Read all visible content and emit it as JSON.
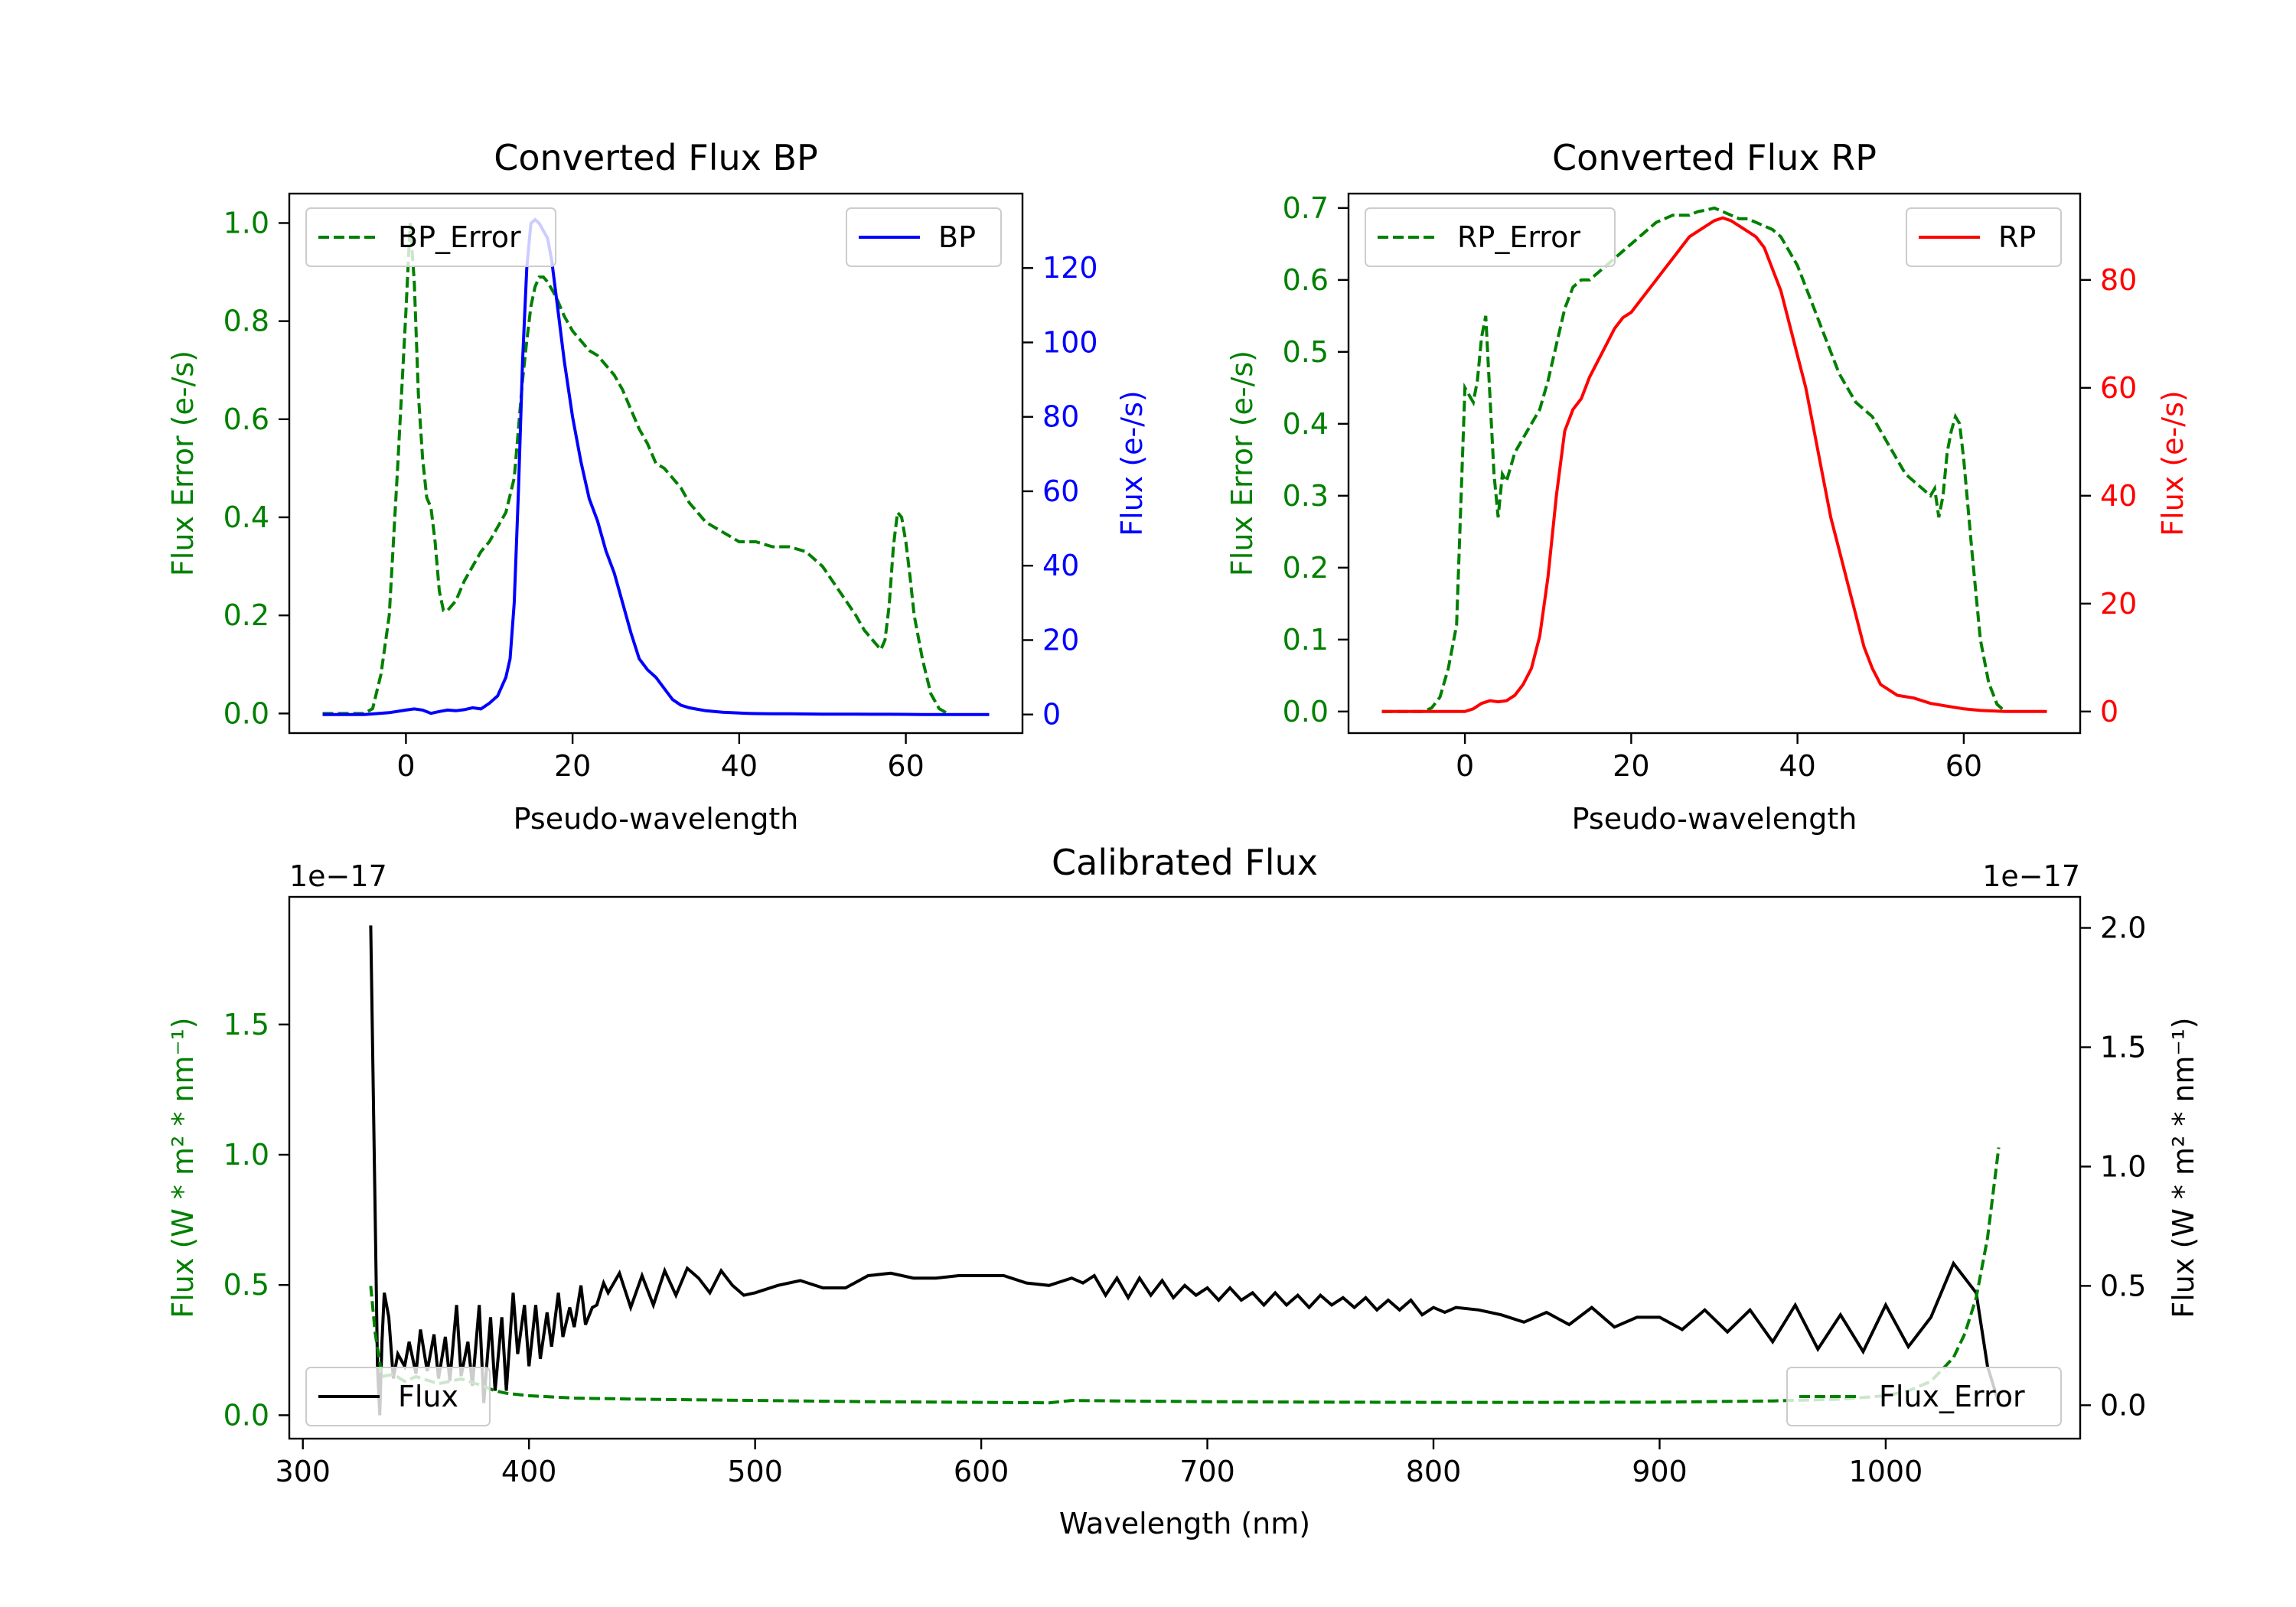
{
  "chart_data": [
    {
      "id": "bp",
      "type": "line",
      "title": "Converted Flux BP",
      "xlabel": "Pseudo-wavelength",
      "ylabel_left": "Flux Error (e-/s)",
      "ylabel_right": "Flux (e-/s)",
      "xlim": [
        -14,
        74
      ],
      "ylim_left": [
        -0.04,
        1.06
      ],
      "ylim_right": [
        -5,
        140
      ],
      "xticks": [
        0,
        20,
        40,
        60
      ],
      "yticks_left": [
        0.0,
        0.2,
        0.4,
        0.6,
        0.8,
        1.0
      ],
      "yticks_right": [
        0,
        20,
        40,
        60,
        80,
        100,
        120
      ],
      "ytick_labels_left": [
        "0.0",
        "0.2",
        "0.4",
        "0.6",
        "0.8",
        "1.0"
      ],
      "ytick_labels_right": [
        "0",
        "20",
        "40",
        "60",
        "80",
        "100",
        "120"
      ],
      "legend_left": "BP_Error",
      "legend_right": "BP",
      "left_color": "#008000",
      "right_color": "#0000ff",
      "error_series": {
        "name": "BP_Error",
        "x": [
          -10,
          -5,
          -4,
          -3,
          -2,
          -1,
          0,
          0.5,
          1,
          1.5,
          2,
          2.5,
          3,
          3.5,
          4,
          4.5,
          5,
          6,
          7,
          8,
          9,
          10,
          11,
          12,
          13,
          13.5,
          14,
          14.5,
          15,
          15.5,
          16,
          16.5,
          17,
          18,
          19,
          20,
          21,
          22,
          23,
          24,
          25,
          26,
          27,
          28,
          29,
          30,
          31,
          32,
          33,
          34,
          35,
          36,
          37,
          38,
          39,
          40,
          42,
          44,
          46,
          48,
          50,
          52,
          54,
          55,
          56,
          57,
          57.5,
          58,
          58.5,
          59,
          59.5,
          60,
          60.5,
          61,
          62,
          63,
          64,
          65
        ],
        "values": [
          0.0,
          0.0,
          0.01,
          0.08,
          0.2,
          0.5,
          0.82,
          1.0,
          0.88,
          0.65,
          0.52,
          0.44,
          0.42,
          0.35,
          0.25,
          0.21,
          0.21,
          0.23,
          0.27,
          0.3,
          0.33,
          0.35,
          0.38,
          0.41,
          0.48,
          0.58,
          0.68,
          0.76,
          0.83,
          0.87,
          0.89,
          0.89,
          0.88,
          0.85,
          0.81,
          0.78,
          0.76,
          0.74,
          0.73,
          0.71,
          0.69,
          0.66,
          0.62,
          0.58,
          0.55,
          0.51,
          0.5,
          0.48,
          0.46,
          0.43,
          0.41,
          0.39,
          0.38,
          0.37,
          0.36,
          0.35,
          0.35,
          0.34,
          0.34,
          0.33,
          0.3,
          0.25,
          0.2,
          0.17,
          0.15,
          0.13,
          0.15,
          0.22,
          0.34,
          0.41,
          0.4,
          0.35,
          0.28,
          0.2,
          0.11,
          0.04,
          0.01,
          0.0
        ]
      },
      "flux_series": {
        "name": "BP",
        "x": [
          -10,
          -5,
          -2,
          0,
          1,
          2,
          3,
          4,
          5,
          6,
          7,
          8,
          9,
          10,
          11,
          12,
          12.5,
          13,
          13.5,
          14,
          14.5,
          15,
          15.5,
          16,
          16.5,
          17,
          17.5,
          18,
          19,
          20,
          21,
          22,
          23,
          24,
          25,
          26,
          27,
          28,
          29,
          30,
          31,
          32,
          33,
          34,
          35,
          36,
          37,
          38,
          39,
          40,
          41,
          42,
          44,
          46,
          48,
          50,
          52,
          54,
          56,
          58,
          60,
          62,
          65,
          70
        ],
        "values": [
          0,
          0,
          0.5,
          1.2,
          1.5,
          1.2,
          0.3,
          0.8,
          1.2,
          1.0,
          1.3,
          1.8,
          1.5,
          3,
          5,
          10,
          15,
          30,
          60,
          95,
          120,
          132,
          133,
          132,
          130,
          128,
          122,
          113,
          95,
          80,
          68,
          58,
          52,
          44,
          38,
          30,
          22,
          15,
          12,
          10,
          7,
          4,
          2.5,
          1.8,
          1.4,
          1.0,
          0.8,
          0.6,
          0.5,
          0.4,
          0.3,
          0.25,
          0.2,
          0.2,
          0.15,
          0.1,
          0.1,
          0.1,
          0.05,
          0.05,
          0.03,
          0.0,
          0.0,
          0.0
        ]
      }
    },
    {
      "id": "rp",
      "type": "line",
      "title": "Converted Flux RP",
      "xlabel": "Pseudo-wavelength",
      "ylabel_left": "Flux Error (e-/s)",
      "ylabel_right": "Flux (e-/s)",
      "xlim": [
        -14,
        74
      ],
      "ylim_left": [
        -0.03,
        0.72
      ],
      "ylim_right": [
        -4,
        96
      ],
      "xticks": [
        0,
        20,
        40,
        60
      ],
      "yticks_left": [
        0.0,
        0.1,
        0.2,
        0.3,
        0.4,
        0.5,
        0.6,
        0.7
      ],
      "yticks_right": [
        0,
        20,
        40,
        60,
        80
      ],
      "ytick_labels_left": [
        "0.0",
        "0.1",
        "0.2",
        "0.3",
        "0.4",
        "0.5",
        "0.6",
        "0.7"
      ],
      "ytick_labels_right": [
        "0",
        "20",
        "40",
        "60",
        "80"
      ],
      "legend_left": "RP_Error",
      "legend_right": "RP",
      "left_color": "#008000",
      "right_color": "#ff0000",
      "error_series": {
        "name": "RP_Error",
        "x": [
          -10,
          -5,
          -4,
          -3,
          -2,
          -1,
          0,
          0.5,
          1,
          1.5,
          2,
          2.5,
          3,
          3.5,
          4,
          4.5,
          5,
          6,
          7,
          8,
          9,
          10,
          11,
          12,
          13,
          14,
          15,
          16,
          17,
          18,
          19,
          20,
          21,
          22,
          23,
          24,
          25,
          26,
          27,
          28,
          29,
          30,
          31,
          32,
          33,
          34,
          35,
          36,
          37,
          38,
          39,
          40,
          41,
          42,
          43,
          44,
          45,
          46,
          47,
          48,
          49,
          50,
          51,
          52,
          53,
          54,
          55,
          56,
          56.5,
          57,
          57.5,
          58,
          58.5,
          59,
          59.5,
          60,
          61,
          62,
          63,
          64,
          65
        ],
        "values": [
          0.0,
          0.0,
          0.005,
          0.02,
          0.06,
          0.12,
          0.45,
          0.44,
          0.43,
          0.46,
          0.52,
          0.55,
          0.44,
          0.33,
          0.27,
          0.33,
          0.32,
          0.36,
          0.38,
          0.4,
          0.42,
          0.46,
          0.51,
          0.56,
          0.59,
          0.6,
          0.6,
          0.61,
          0.62,
          0.63,
          0.64,
          0.65,
          0.66,
          0.67,
          0.68,
          0.685,
          0.69,
          0.69,
          0.69,
          0.695,
          0.697,
          0.7,
          0.695,
          0.69,
          0.685,
          0.685,
          0.68,
          0.675,
          0.67,
          0.66,
          0.64,
          0.62,
          0.59,
          0.56,
          0.53,
          0.5,
          0.47,
          0.45,
          0.43,
          0.42,
          0.41,
          0.39,
          0.37,
          0.35,
          0.33,
          0.32,
          0.31,
          0.3,
          0.31,
          0.27,
          0.3,
          0.36,
          0.39,
          0.41,
          0.4,
          0.35,
          0.22,
          0.1,
          0.04,
          0.01,
          0.0
        ]
      },
      "flux_series": {
        "name": "RP",
        "x": [
          -10,
          -5,
          -2,
          0,
          1,
          2,
          3,
          4,
          5,
          6,
          7,
          8,
          9,
          10,
          11,
          12,
          13,
          14,
          15,
          16,
          17,
          18,
          19,
          20,
          21,
          22,
          23,
          24,
          25,
          26,
          27,
          28,
          29,
          30,
          31,
          32,
          33,
          34,
          35,
          36,
          37,
          38,
          39,
          40,
          41,
          42,
          43,
          44,
          45,
          46,
          47,
          48,
          49,
          50,
          52,
          54,
          56,
          58,
          60,
          62,
          65,
          70
        ],
        "values": [
          0,
          0,
          0,
          0,
          0.5,
          1.5,
          2.0,
          1.8,
          2.0,
          3.0,
          5.0,
          8.0,
          14,
          25,
          40,
          52,
          56,
          58,
          62,
          65,
          68,
          71,
          73,
          74,
          76,
          78,
          80,
          82,
          84,
          86,
          88,
          89,
          90,
          91,
          91.5,
          91,
          90,
          89,
          88,
          86,
          82,
          78,
          72,
          66,
          60,
          52,
          44,
          36,
          30,
          24,
          18,
          12,
          8,
          5,
          3,
          2.5,
          1.5,
          1.0,
          0.5,
          0.2,
          0.0,
          0.0
        ]
      }
    },
    {
      "id": "cal",
      "type": "line",
      "title": "Calibrated Flux",
      "xlabel": "Wavelength (nm)",
      "ylabel_left": "Flux (W * m² * nm⁻¹)",
      "ylabel_right": "Flux (W * m² * nm⁻¹)",
      "scale_label_left": "1e−17",
      "scale_label_right": "1e−17",
      "xlim": [
        294,
        1086
      ],
      "ylim_left": [
        -0.09,
        1.99
      ],
      "ylim_right": [
        -0.14,
        2.13
      ],
      "xticks": [
        300,
        400,
        500,
        600,
        700,
        800,
        900,
        1000
      ],
      "yticks_left": [
        0.0,
        0.5,
        1.0,
        1.5
      ],
      "yticks_right": [
        0.0,
        0.5,
        1.0,
        1.5,
        2.0
      ],
      "ytick_labels_left": [
        "0.0",
        "0.5",
        "1.0",
        "1.5"
      ],
      "ytick_labels_right": [
        "0.0",
        "0.5",
        "1.0",
        "1.5",
        "2.0"
      ],
      "legend_left": "Flux",
      "legend_right": "Flux_Error",
      "left_color": "#008000",
      "right_color": "#000000",
      "error_series": {
        "name": "Flux_Error",
        "x": [
          330,
          332,
          335,
          340,
          345,
          350,
          360,
          370,
          380,
          385,
          390,
          400,
          420,
          450,
          500,
          550,
          600,
          630,
          640,
          660,
          700,
          750,
          800,
          850,
          900,
          950,
          980,
          1000,
          1010,
          1020,
          1025,
          1030,
          1035,
          1040,
          1045,
          1050
        ],
        "values": [
          0.5,
          0.3,
          0.12,
          0.13,
          0.1,
          0.12,
          0.09,
          0.11,
          0.08,
          0.06,
          0.05,
          0.04,
          0.03,
          0.025,
          0.02,
          0.015,
          0.012,
          0.01,
          0.02,
          0.018,
          0.015,
          0.013,
          0.012,
          0.012,
          0.013,
          0.018,
          0.025,
          0.04,
          0.06,
          0.1,
          0.15,
          0.2,
          0.3,
          0.45,
          0.7,
          1.08
        ]
      },
      "flux_series": {
        "name": "Flux",
        "x": [
          330,
          332,
          333,
          334,
          335,
          336,
          338,
          340,
          342,
          345,
          347,
          350,
          352,
          355,
          358,
          360,
          363,
          365,
          368,
          370,
          373,
          375,
          378,
          380,
          383,
          385,
          388,
          390,
          393,
          395,
          398,
          400,
          403,
          405,
          408,
          410,
          413,
          415,
          418,
          420,
          423,
          425,
          428,
          430,
          433,
          435,
          440,
          445,
          450,
          455,
          460,
          465,
          470,
          475,
          480,
          485,
          490,
          495,
          500,
          510,
          520,
          530,
          540,
          550,
          560,
          570,
          580,
          590,
          600,
          610,
          620,
          630,
          640,
          645,
          650,
          655,
          660,
          665,
          670,
          675,
          680,
          685,
          690,
          695,
          700,
          705,
          710,
          715,
          720,
          725,
          730,
          735,
          740,
          745,
          750,
          755,
          760,
          765,
          770,
          775,
          780,
          785,
          790,
          795,
          800,
          805,
          810,
          820,
          830,
          840,
          850,
          860,
          870,
          880,
          890,
          900,
          910,
          920,
          930,
          940,
          950,
          960,
          970,
          980,
          990,
          1000,
          1010,
          1020,
          1030,
          1040,
          1045,
          1050
        ],
        "values": [
          2.0,
          0.8,
          0.2,
          0.0,
          0.3,
          0.5,
          0.4,
          0.15,
          0.25,
          0.2,
          0.3,
          0.17,
          0.35,
          0.18,
          0.33,
          0.15,
          0.32,
          0.14,
          0.45,
          0.16,
          0.3,
          0.12,
          0.45,
          0.05,
          0.4,
          0.1,
          0.4,
          0.1,
          0.5,
          0.25,
          0.45,
          0.2,
          0.45,
          0.23,
          0.42,
          0.28,
          0.5,
          0.32,
          0.44,
          0.36,
          0.53,
          0.37,
          0.44,
          0.45,
          0.54,
          0.5,
          0.58,
          0.44,
          0.57,
          0.45,
          0.59,
          0.49,
          0.6,
          0.56,
          0.5,
          0.59,
          0.53,
          0.49,
          0.5,
          0.53,
          0.55,
          0.52,
          0.52,
          0.57,
          0.58,
          0.56,
          0.56,
          0.57,
          0.57,
          0.57,
          0.54,
          0.53,
          0.56,
          0.54,
          0.57,
          0.49,
          0.56,
          0.48,
          0.56,
          0.49,
          0.55,
          0.48,
          0.53,
          0.49,
          0.52,
          0.47,
          0.52,
          0.47,
          0.5,
          0.45,
          0.5,
          0.45,
          0.49,
          0.44,
          0.49,
          0.45,
          0.48,
          0.44,
          0.48,
          0.43,
          0.47,
          0.43,
          0.47,
          0.41,
          0.44,
          0.42,
          0.44,
          0.43,
          0.41,
          0.38,
          0.42,
          0.37,
          0.44,
          0.36,
          0.4,
          0.4,
          0.35,
          0.43,
          0.34,
          0.43,
          0.3,
          0.45,
          0.27,
          0.41,
          0.26,
          0.45,
          0.28,
          0.4,
          0.62,
          0.5,
          0.2,
          0.05
        ]
      }
    }
  ]
}
